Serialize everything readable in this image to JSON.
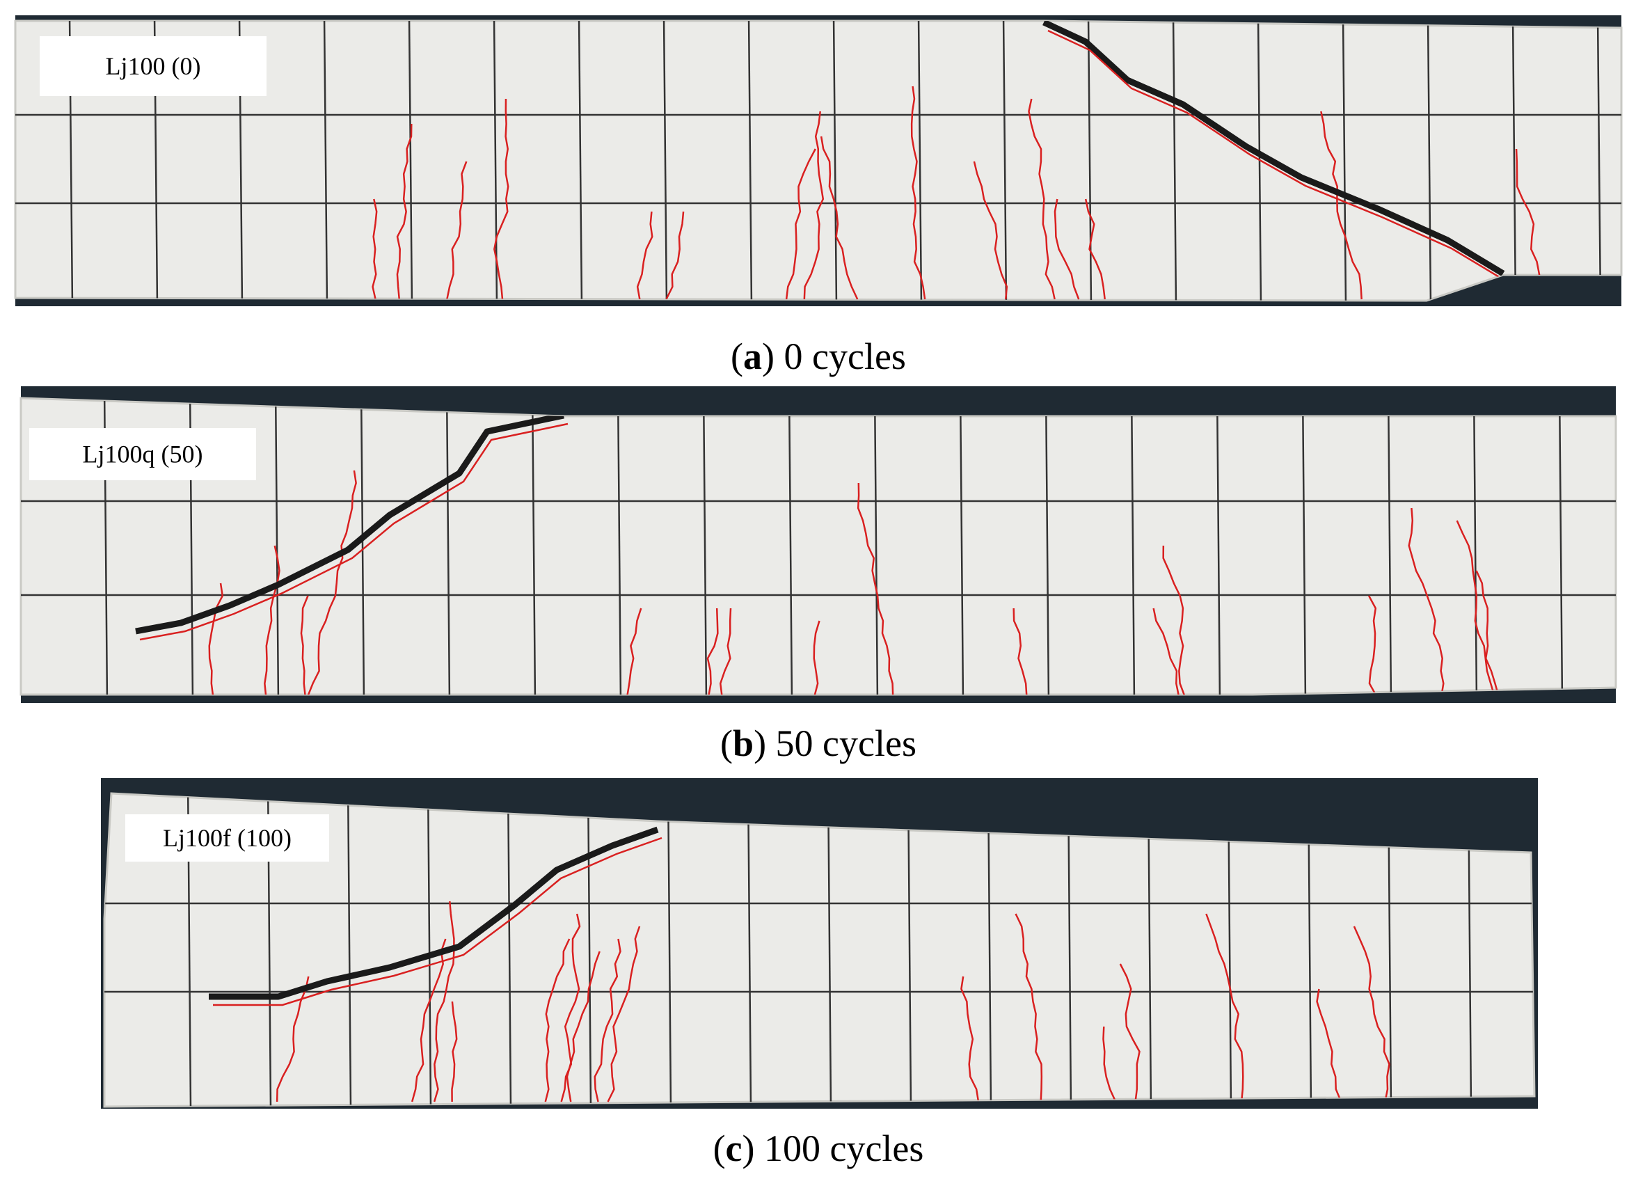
{
  "panels": [
    {
      "label": "Lj100  (0)",
      "caption": {
        "open": "(",
        "letter": "a",
        "rest": ") 0 cycles"
      }
    },
    {
      "label": "Lj100q (50)",
      "caption": {
        "open": "(",
        "letter": "b",
        "rest": ") 50 cycles"
      }
    },
    {
      "label": "Lj100f (100)",
      "caption": {
        "open": "(",
        "letter": "c",
        "rest": ") 100 cycles"
      }
    }
  ]
}
